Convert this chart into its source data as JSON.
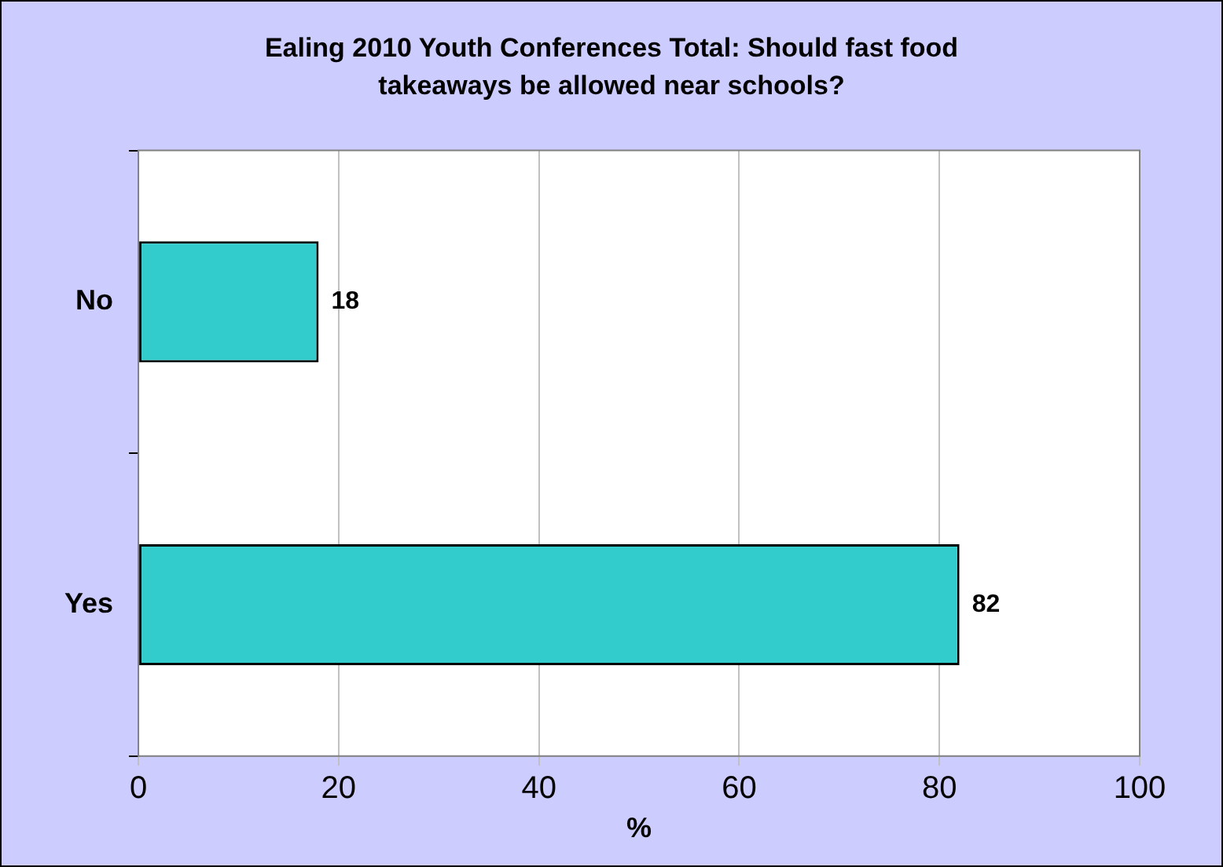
{
  "chart_data": {
    "type": "bar",
    "orientation": "horizontal",
    "title": "Ealing 2010 Youth Conferences Total: Should fast food takeaways be allowed near schools?",
    "xlabel": "%",
    "categories": [
      "No",
      "Yes"
    ],
    "values": [
      18,
      82
    ],
    "color": "#33cccc",
    "xlim": [
      0,
      100
    ],
    "xticks": [
      0,
      20,
      40,
      60,
      80,
      100
    ],
    "grid": "x",
    "data_labels": true
  }
}
